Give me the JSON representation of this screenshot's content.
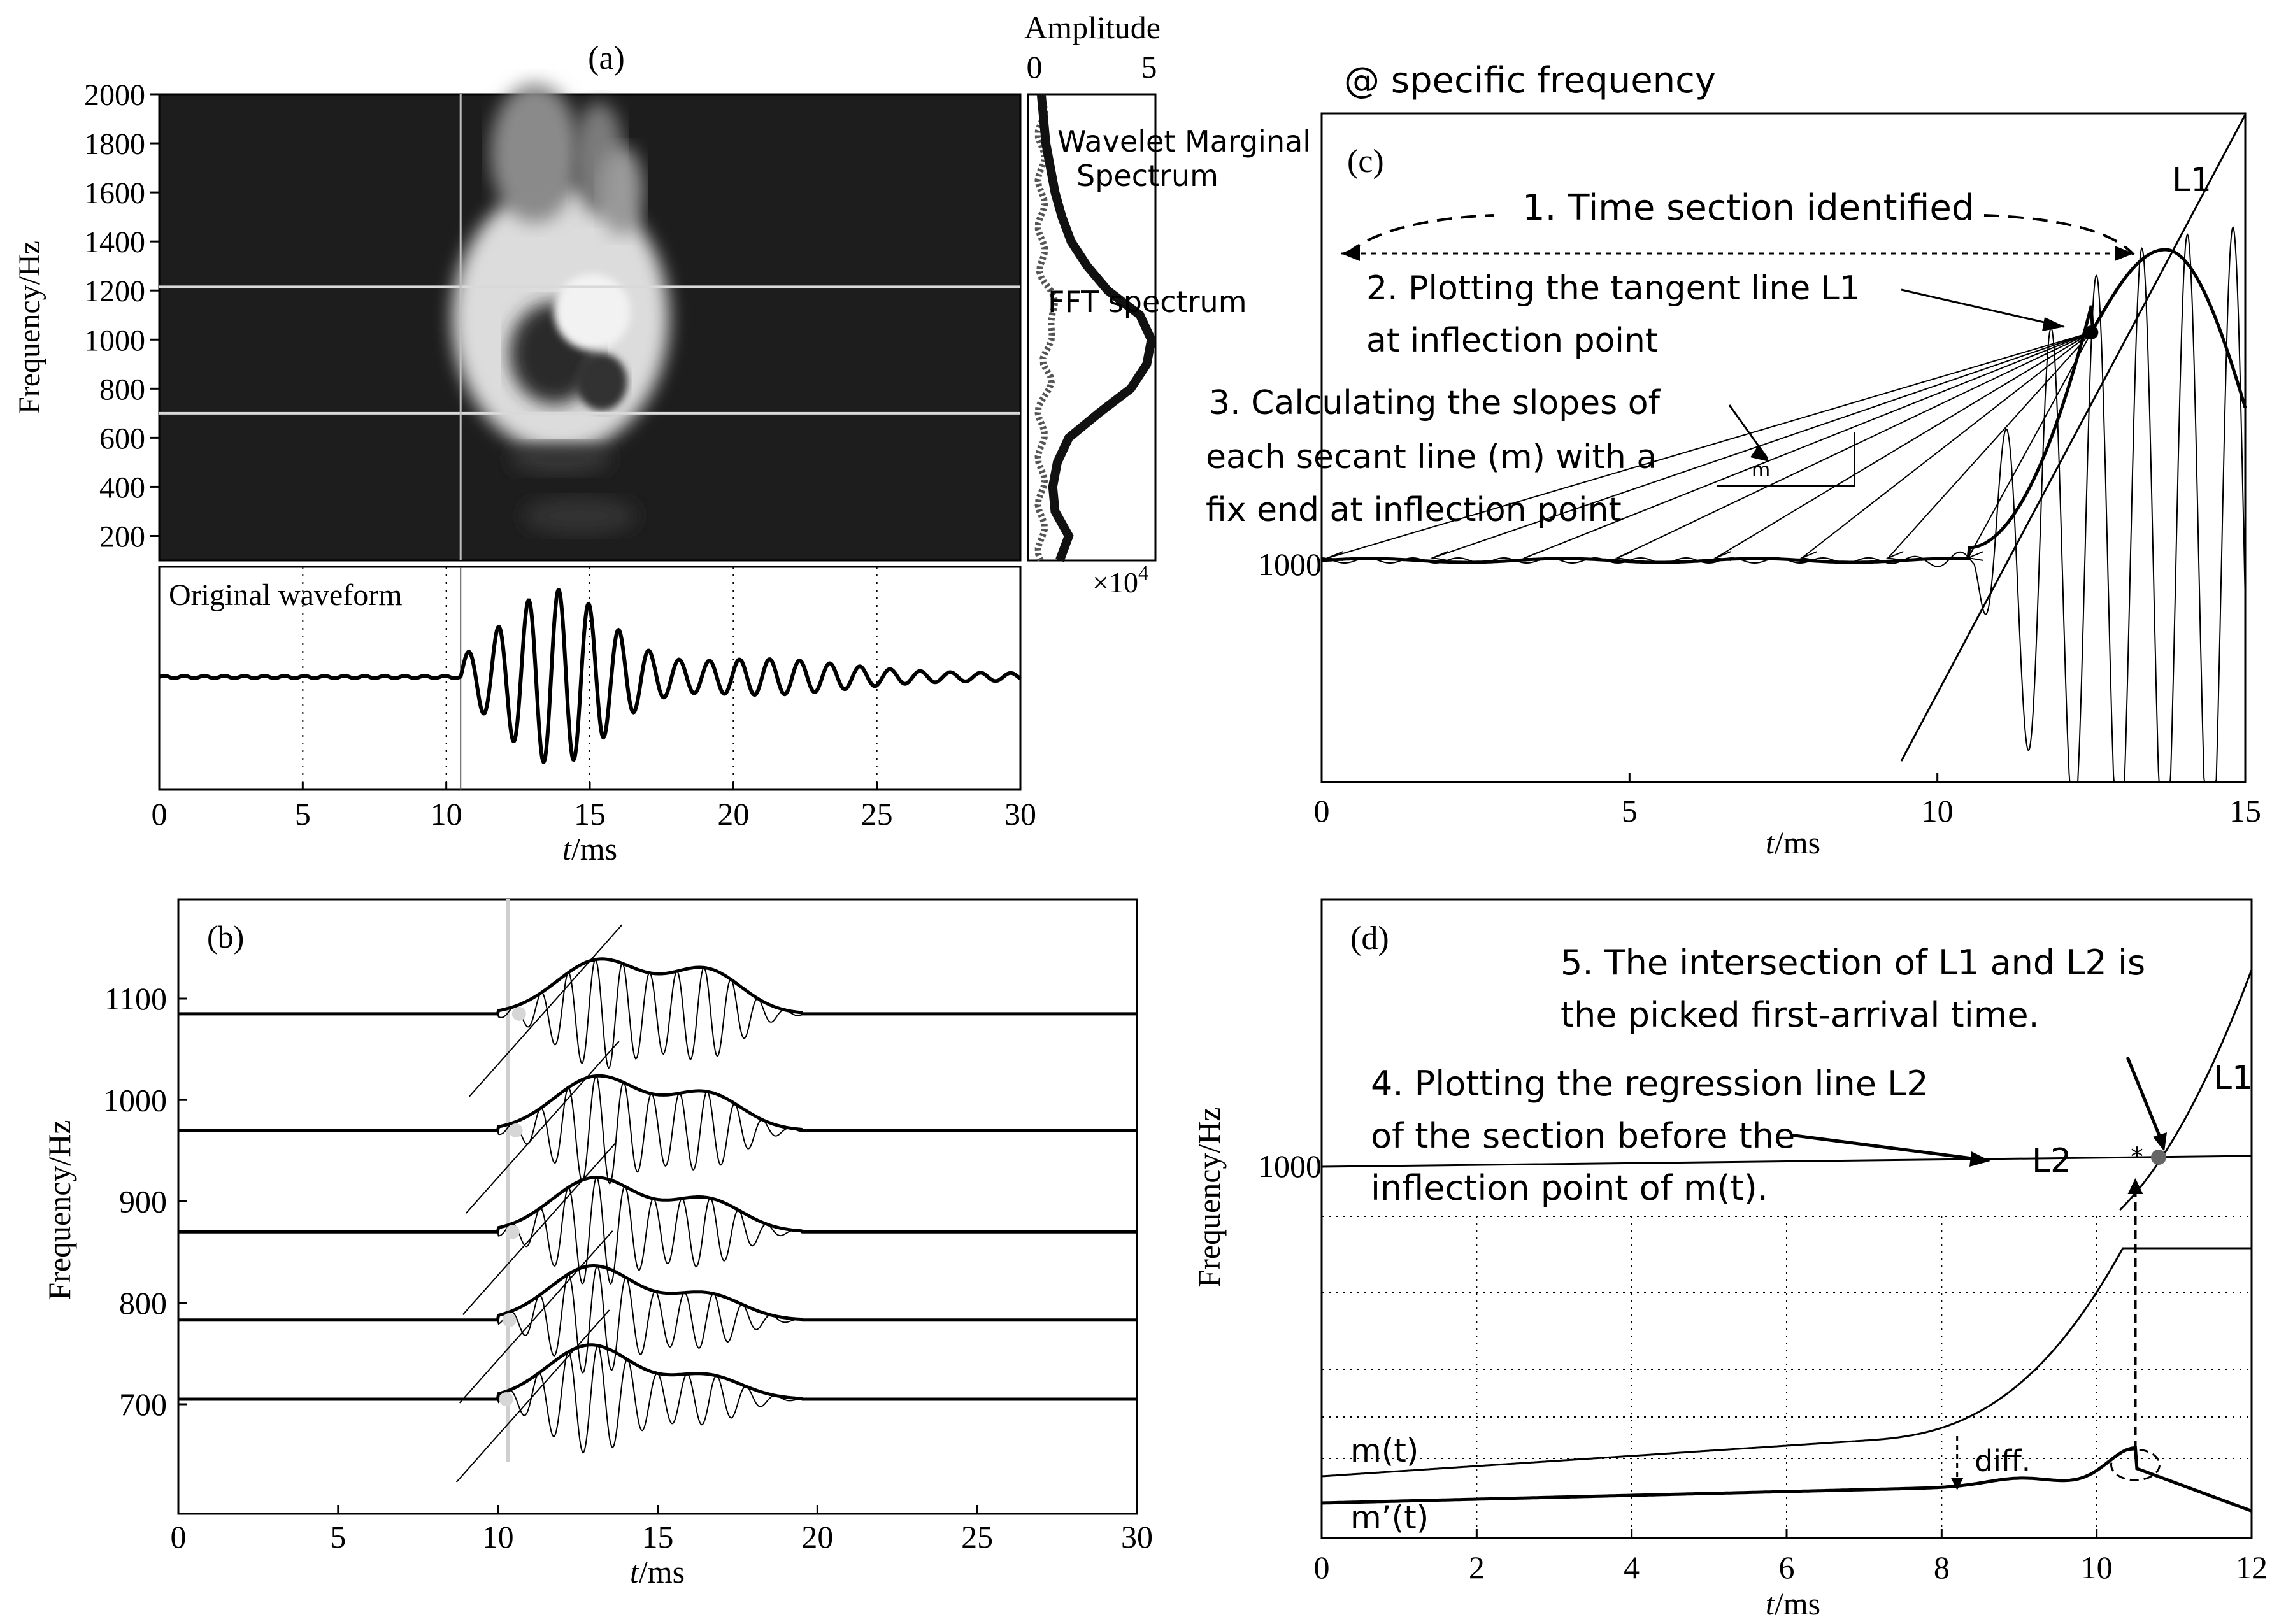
{
  "chart_data": [
    {
      "panel": "(a)",
      "type": "heatmap",
      "title": "(a)",
      "description_free": true,
      "ylabel": "Frequency/Hz",
      "yticks": [
        200,
        400,
        600,
        800,
        1000,
        1200,
        1400,
        1600,
        1800,
        2000
      ],
      "ylim": [
        100,
        2000
      ],
      "xlim": [
        0,
        30
      ],
      "hlines": [
        700,
        1215
      ],
      "vline": 10.5,
      "marginal": {
        "title": "Amplitude",
        "xticks": [
          0,
          5
        ],
        "scale_label": "×10",
        "scale_exp": "4",
        "wavelet_label": "Wavelet Marginal Spectrum",
        "fft_label": "FFT spectrum",
        "wavelet_series": {
          "freq": [
            100,
            200,
            300,
            400,
            500,
            600,
            700,
            800,
            900,
            1000,
            1100,
            1200,
            1300,
            1400,
            1500,
            1600,
            1700,
            1800,
            1900,
            2000
          ],
          "amp": [
            1.1,
            1.5,
            0.9,
            0.8,
            1.0,
            1.5,
            2.8,
            4.2,
            4.9,
            5.1,
            4.6,
            3.2,
            2.3,
            1.6,
            1.2,
            0.9,
            0.7,
            0.5,
            0.4,
            0.3
          ]
        }
      },
      "sub": {
        "title": "Original waveform",
        "xlabel_italic": "t",
        "xlabel_unit": "/ms",
        "xticks": [
          0,
          5,
          10,
          15,
          20,
          25,
          30
        ],
        "onset": 10.5
      }
    },
    {
      "panel": "(b)",
      "type": "line",
      "title": "(b)",
      "ylabel": "Frequency/Hz",
      "yticks": [
        700,
        800,
        900,
        1000,
        1100
      ],
      "xlim": [
        0,
        30
      ],
      "xticks": [
        0,
        5,
        10,
        15,
        20,
        25,
        30
      ],
      "xlabel_italic": "t",
      "xlabel_unit": "/ms",
      "traces": [
        1085,
        970,
        870,
        783,
        705
      ],
      "picks": [
        10.5,
        10.4,
        10.3,
        10.2,
        10.1
      ]
    },
    {
      "panel": "(c)",
      "type": "line",
      "header": "@ specific frequency",
      "title": "(c)",
      "ytick": "1000",
      "xlim": [
        0,
        15
      ],
      "xticks": [
        0,
        5,
        10,
        15
      ],
      "xlabel_italic": "t",
      "xlabel_unit": "/ms",
      "inflection_t": 12.5,
      "line_label": "L1",
      "secant_label": "m",
      "annotations": [
        "1. Time section identified",
        "2. Plotting the tangent line L1",
        "at inflection point",
        "3. Calculating the slopes of",
        "each secant line (m) with a",
        "fix end at inflection point"
      ]
    },
    {
      "panel": "(d)",
      "type": "line",
      "title": "(d)",
      "ylabel": "Frequency/Hz",
      "ytick": "1000",
      "xlim": [
        0,
        12
      ],
      "xticks": [
        0,
        2,
        4,
        6,
        8,
        10,
        12
      ],
      "xlabel_italic": "t",
      "xlabel_unit": "/ms",
      "labels": {
        "L1": "L1",
        "L2": "L2",
        "m": "m(t)",
        "mp": "m’(t)",
        "diff": "diff.",
        "star": "*"
      },
      "annotations": [
        "5. The intersection of L1 and L2 is",
        "the picked first-arrival time.",
        "4. Plotting the regression line L2",
        "of the section before the",
        "inflection point of m(t)."
      ],
      "pick_t": 10.8
    }
  ]
}
